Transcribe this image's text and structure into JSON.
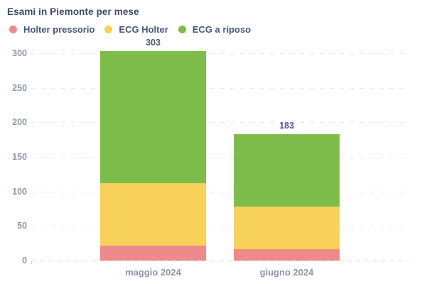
{
  "chart_data": {
    "type": "bar",
    "stacked": true,
    "title": "Esami in Piemonte per mese",
    "categories": [
      "maggio 2024",
      "giugno 2024"
    ],
    "series": [
      {
        "name": "Holter pressorio",
        "color": "#ee8a8a",
        "values": [
          22,
          16
        ]
      },
      {
        "name": "ECG Holter",
        "color": "#f7d159",
        "values": [
          90,
          62
        ]
      },
      {
        "name": "ECG a riposo",
        "color": "#7ebd4b",
        "values": [
          191,
          105
        ]
      }
    ],
    "totals": [
      303,
      183
    ],
    "xlabel": "",
    "ylabel": "",
    "ylim": [
      0,
      300
    ],
    "yticks": [
      0,
      50,
      100,
      150,
      200,
      250,
      300
    ],
    "grid": {
      "horizontal": true,
      "style": "dashed"
    },
    "legend_position": "top-left"
  },
  "colors": {
    "background": "#ffffff",
    "title_text": "#3d4b66",
    "legend_text": "#47567a",
    "value_label_text": "#4b5a7d",
    "axis_label_text": "#8e99ad",
    "gridline": "#e8eaef",
    "zero_line": "#d6dade"
  }
}
